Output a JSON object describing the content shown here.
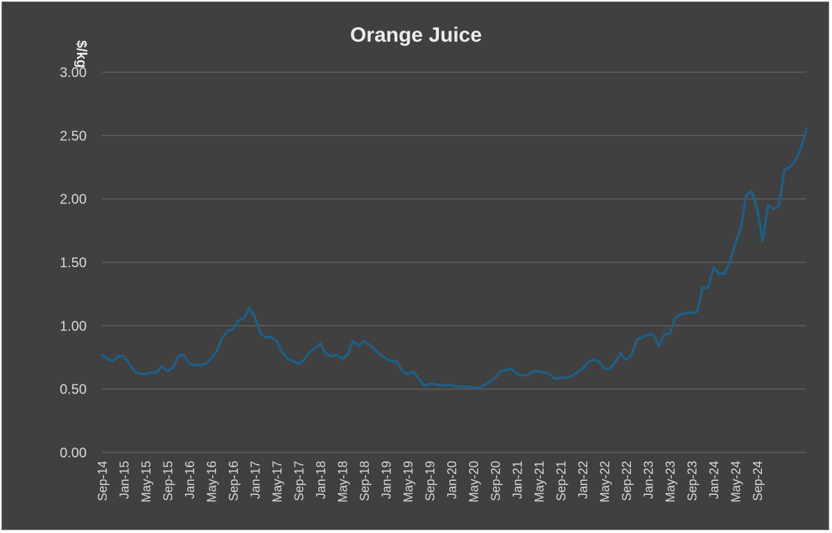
{
  "chart_data": {
    "type": "line",
    "title": "Orange Juice",
    "ylabel": "$/kg",
    "xlabel": "",
    "ylim": [
      0,
      3
    ],
    "yticks": [
      "0.00",
      "0.50",
      "1.00",
      "1.50",
      "2.00",
      "2.50",
      "3.00"
    ],
    "grid": true,
    "legend": "none",
    "line_color": "#1f5f86",
    "background_color": "#404040",
    "start_month": "2014-09",
    "end_month": "2024-09",
    "x_tick_labels": [
      "Sep-14",
      "Jan-15",
      "May-15",
      "Sep-15",
      "Jan-16",
      "May-16",
      "Sep-16",
      "Jan-17",
      "May-17",
      "Sep-17",
      "Jan-18",
      "May-18",
      "Sep-18",
      "Jan-19",
      "May-19",
      "Sep-19",
      "Jan-20",
      "May-20",
      "Sep-20",
      "Jan-21",
      "May-21",
      "Sep-21",
      "Jan-22",
      "May-22",
      "Sep-22",
      "Jan-23",
      "May-23",
      "Sep-23",
      "Jan-24",
      "May-24",
      "Sep-24"
    ],
    "series": [
      {
        "name": "",
        "values": [
          0.77,
          0.74,
          0.72,
          0.76,
          0.76,
          0.7,
          0.64,
          0.62,
          0.62,
          0.63,
          0.63,
          0.68,
          0.64,
          0.67,
          0.76,
          0.77,
          0.7,
          0.69,
          0.69,
          0.7,
          0.74,
          0.8,
          0.9,
          0.96,
          0.97,
          1.04,
          1.06,
          1.14,
          1.07,
          0.94,
          0.91,
          0.91,
          0.88,
          0.79,
          0.74,
          0.72,
          0.7,
          0.73,
          0.79,
          0.82,
          0.86,
          0.78,
          0.76,
          0.77,
          0.74,
          0.77,
          0.88,
          0.84,
          0.88,
          0.85,
          0.81,
          0.77,
          0.74,
          0.72,
          0.72,
          0.64,
          0.62,
          0.64,
          0.58,
          0.53,
          0.54,
          0.54,
          0.53,
          0.53,
          0.53,
          0.52,
          0.52,
          0.52,
          0.51,
          0.51,
          0.53,
          0.56,
          0.59,
          0.64,
          0.65,
          0.66,
          0.62,
          0.61,
          0.61,
          0.64,
          0.64,
          0.63,
          0.62,
          0.58,
          0.59,
          0.59,
          0.6,
          0.63,
          0.66,
          0.71,
          0.73,
          0.72,
          0.66,
          0.66,
          0.71,
          0.78,
          0.73,
          0.77,
          0.89,
          0.91,
          0.93,
          0.93,
          0.84,
          0.93,
          0.94,
          1.06,
          1.09,
          1.1,
          1.1,
          1.11,
          1.3,
          1.3,
          1.46,
          1.41,
          1.41,
          1.5,
          1.65,
          1.77,
          2.03,
          2.06,
          1.92,
          1.67,
          1.95,
          1.92,
          1.95,
          2.23,
          2.25,
          2.3,
          2.4,
          2.55
        ]
      }
    ]
  }
}
